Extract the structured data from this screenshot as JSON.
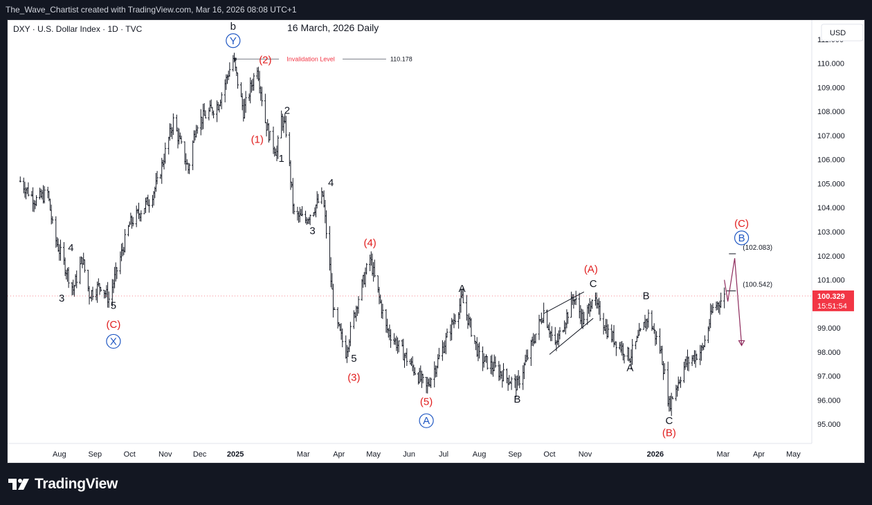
{
  "header": {
    "attribution": "The_Wave_Chartist created with TradingView.com, Mar 16, 2026 08:08 UTC+1"
  },
  "chart_data": {
    "type": "line",
    "symbol_legend": "DXY · U.S. Dollar Index · 1D · TVC",
    "title": "16 March, 2026 Daily",
    "currency": "USD",
    "ylim": [
      94.2,
      111.8
    ],
    "y_ticks": [
      "95.000",
      "96.000",
      "97.000",
      "98.000",
      "99.000",
      "100.000",
      "101.000",
      "102.000",
      "103.000",
      "104.000",
      "105.000",
      "106.000",
      "107.000",
      "108.000",
      "109.000",
      "110.000",
      "111.000"
    ],
    "x_ticks": [
      "Aug",
      "Sep",
      "Oct",
      "Nov",
      "Dec",
      "2025",
      "Mar",
      "Apr",
      "May",
      "Jun",
      "Jul",
      "Aug",
      "Sep",
      "Oct",
      "Nov",
      "2026",
      "Mar",
      "Apr",
      "May"
    ],
    "x_tick_bold": [
      "2025",
      "2026"
    ],
    "series": [
      {
        "x": [
          "2024-07-12",
          "2024-07-25",
          "2024-08-05",
          "2024-08-10",
          "2024-08-27",
          "2024-09-04",
          "2024-09-10",
          "2024-09-20",
          "2024-09-27",
          "2024-10-15",
          "2024-11-01",
          "2024-11-08",
          "2024-11-22",
          "2024-12-05",
          "2024-12-12",
          "2024-12-31",
          "2025-01-13",
          "2025-01-22",
          "2025-02-03",
          "2025-02-10",
          "2025-02-14",
          "2025-02-20",
          "2025-02-24",
          "2025-02-28",
          "2025-03-07",
          "2025-03-17",
          "2025-04-01",
          "2025-04-11",
          "2025-04-21",
          "2025-05-01",
          "2025-05-12",
          "2025-05-26",
          "2025-06-12",
          "2025-06-30",
          "2025-07-08",
          "2025-07-31",
          "2025-08-15",
          "2025-09-17",
          "2025-10-10",
          "2025-10-20",
          "2025-11-05",
          "2025-11-14",
          "2025-11-21",
          "2025-12-05",
          "2025-12-24",
          "2026-01-09",
          "2026-01-20",
          "2026-01-27",
          "2026-02-10",
          "2026-02-25",
          "2026-03-06",
          "2026-03-16"
        ],
        "values": [
          105.1,
          104.3,
          104.6,
          102.9,
          100.6,
          101.9,
          100.4,
          100.8,
          100.2,
          103.3,
          104.3,
          105.0,
          107.6,
          105.6,
          107.5,
          108.3,
          110.2,
          108.0,
          109.9,
          107.6,
          106.9,
          106.3,
          107.7,
          107.2,
          103.7,
          103.5,
          104.5,
          99.5,
          98.0,
          100.1,
          101.9,
          99.0,
          97.8,
          96.5,
          97.4,
          100.2,
          97.8,
          96.6,
          99.7,
          98.2,
          100.3,
          99.2,
          100.3,
          98.8,
          97.8,
          99.5,
          98.0,
          95.8,
          97.5,
          98.1,
          99.8,
          100.3
        ]
      }
    ],
    "wave_labels": [
      {
        "text": "b",
        "x": "2025-01-13",
        "y": 111.4,
        "color": "black"
      },
      {
        "text": "Y",
        "x": "2025-01-13",
        "y": 110.8,
        "color": "blue",
        "circled": true
      },
      {
        "text": "(2)",
        "x": "2025-02-10",
        "y": 110.0,
        "color": "red"
      },
      {
        "text": "(1)",
        "x": "2025-02-03",
        "y": 106.7,
        "color": "red"
      },
      {
        "text": "2",
        "x": "2025-03-01",
        "y": 107.9,
        "color": "black"
      },
      {
        "text": "1",
        "x": "2025-02-24",
        "y": 105.9,
        "color": "black"
      },
      {
        "text": "4",
        "x": "2025-04-08",
        "y": 104.9,
        "color": "black"
      },
      {
        "text": "3",
        "x": "2025-03-23",
        "y": 102.9,
        "color": "black"
      },
      {
        "text": "(4)",
        "x": "2025-05-12",
        "y": 102.4,
        "color": "red"
      },
      {
        "text": "5",
        "x": "2025-04-28",
        "y": 97.6,
        "color": "black"
      },
      {
        "text": "(3)",
        "x": "2025-04-28",
        "y": 96.8,
        "color": "red"
      },
      {
        "text": "(5)",
        "x": "2025-06-30",
        "y": 95.8,
        "color": "red"
      },
      {
        "text": "A",
        "x": "2025-06-30",
        "y": 95.0,
        "color": "blue",
        "circled": true
      },
      {
        "text": "A",
        "x": "2025-07-31",
        "y": 100.5,
        "color": "black"
      },
      {
        "text": "B",
        "x": "2025-09-17",
        "y": 95.9,
        "color": "black"
      },
      {
        "text": "(A)",
        "x": "2025-11-20",
        "y": 101.3,
        "color": "red"
      },
      {
        "text": "C",
        "x": "2025-11-22",
        "y": 100.7,
        "color": "black"
      },
      {
        "text": "A",
        "x": "2025-12-24",
        "y": 97.2,
        "color": "black"
      },
      {
        "text": "B",
        "x": "2026-01-07",
        "y": 100.2,
        "color": "black"
      },
      {
        "text": "C",
        "x": "2026-01-27",
        "y": 95.0,
        "color": "black"
      },
      {
        "text": "(B)",
        "x": "2026-01-27",
        "y": 94.5,
        "color": "red"
      },
      {
        "text": "(C)",
        "x": "2026-03-31",
        "y": 103.2,
        "color": "red"
      },
      {
        "text": "B",
        "x": "2026-03-31",
        "y": 102.6,
        "color": "blue",
        "circled": true
      },
      {
        "text": "4",
        "x": "2024-08-25",
        "y": 102.2,
        "color": "black"
      },
      {
        "text": "3",
        "x": "2024-08-17",
        "y": 100.1,
        "color": "black"
      },
      {
        "text": "5",
        "x": "2024-10-01",
        "y": 99.8,
        "color": "black"
      },
      {
        "text": "(C)",
        "x": "2024-10-01",
        "y": 99.0,
        "color": "red"
      },
      {
        "text": "X",
        "x": "2024-10-01",
        "y": 98.3,
        "color": "blue",
        "circled": true
      }
    ],
    "annotations": [
      {
        "type": "invalidation_level",
        "text": "Invalidation Level",
        "value": 110.178,
        "value_label": "110.178",
        "from": "2025-01-15",
        "to": "2025-05-26"
      },
      {
        "type": "level",
        "text": "(102.083)",
        "value": 102.083,
        "from": "2026-03-20",
        "to": "2026-03-26"
      },
      {
        "type": "level",
        "text": "(100.542)",
        "value": 100.542,
        "from": "2026-03-18",
        "to": "2026-03-26"
      }
    ],
    "channel": [
      {
        "from": "2025-10-10",
        "from_value": 99.6,
        "to": "2025-11-14",
        "to_value": 100.5
      },
      {
        "from": "2025-10-15",
        "from_value": 97.9,
        "to": "2025-11-22",
        "to_value": 99.4
      }
    ],
    "projection": {
      "points": [
        [
          "2026-03-16",
          101.0
        ],
        [
          "2026-03-19",
          100.1
        ],
        [
          "2026-03-25",
          101.9
        ],
        [
          "2026-03-31",
          98.3
        ]
      ],
      "color": "#8e2a5c"
    },
    "last_price": {
      "value": 100.329,
      "label": "100.329",
      "countdown": "15:51:54",
      "color": "#f23645"
    }
  }
}
